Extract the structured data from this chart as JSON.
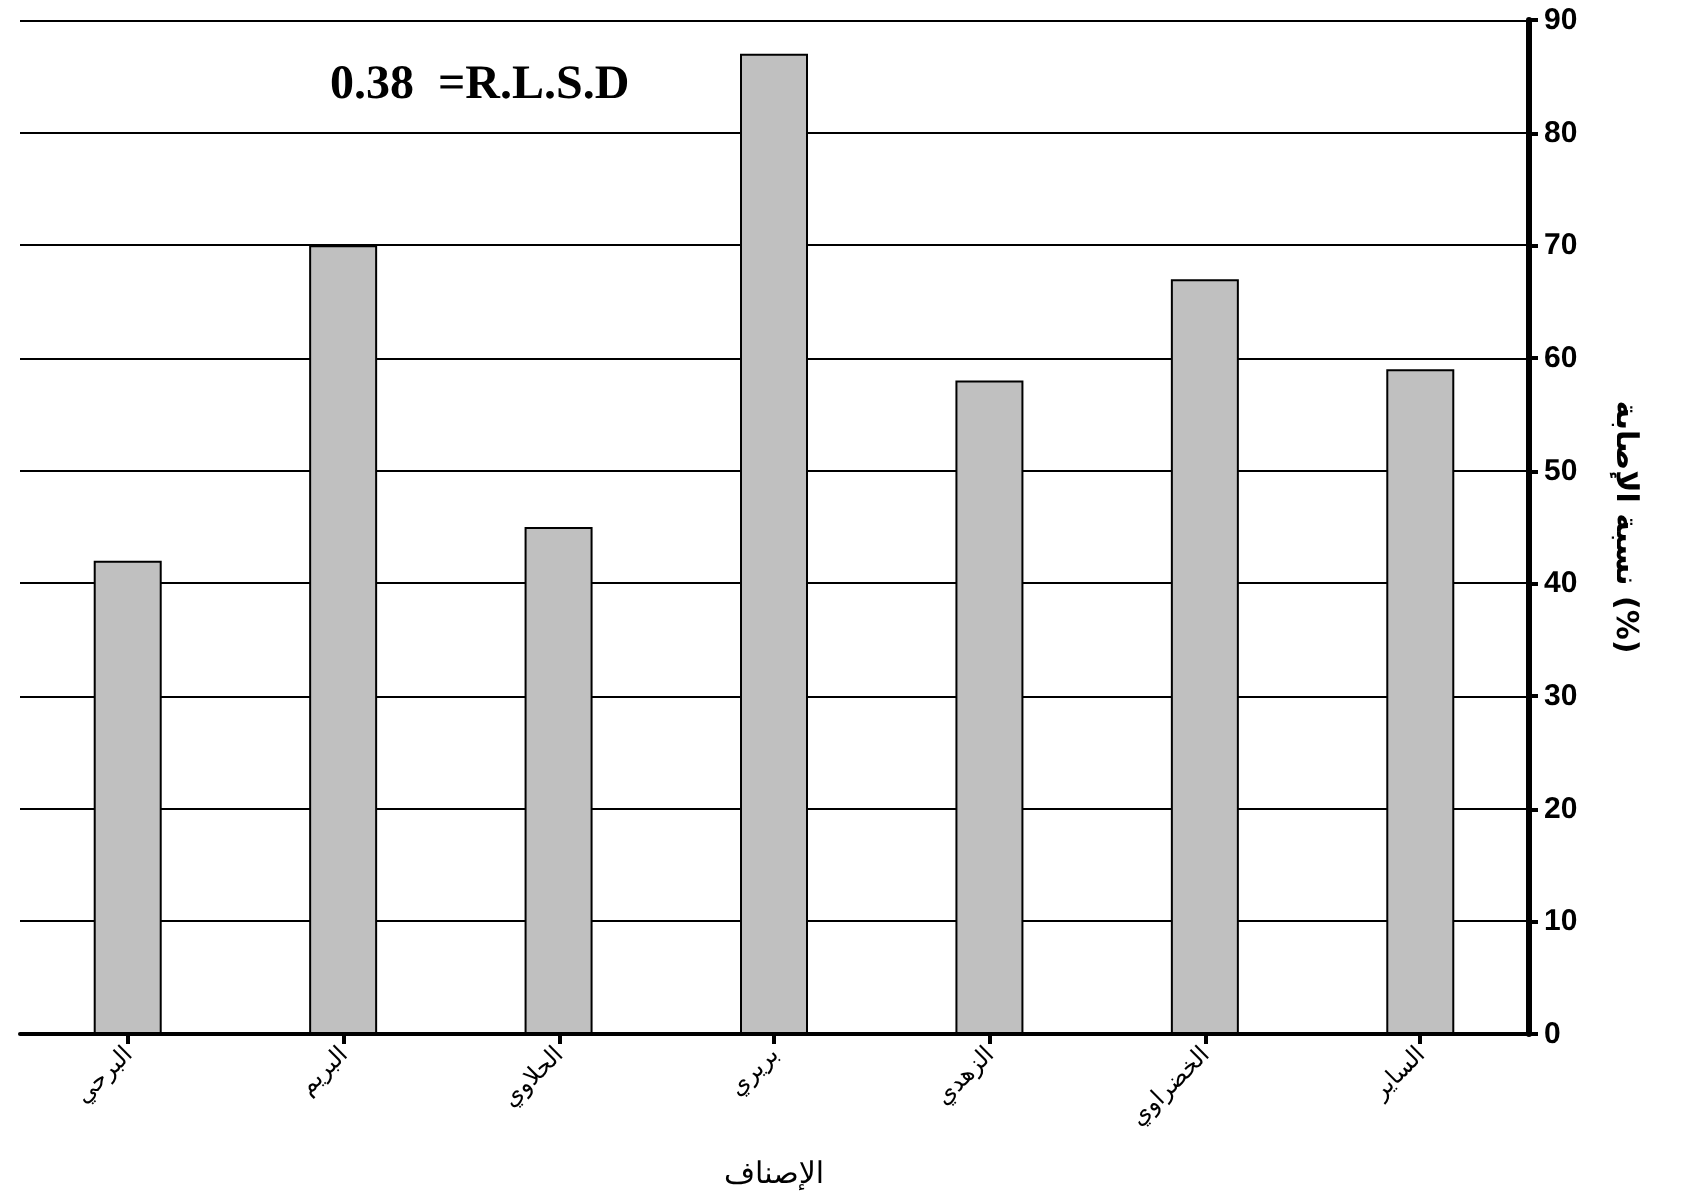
{
  "chart_data": {
    "type": "bar",
    "categories": [
      "البرحي",
      "البريم",
      "الحلاوي",
      "بريري",
      "الزهدي",
      "الخضراوي",
      "الساير"
    ],
    "values": [
      42,
      70,
      45,
      87,
      58,
      67,
      59
    ],
    "color": "#c0c0c0",
    "xlabel": "الإصناف",
    "ylabel": "نسبة الإصابة (%)",
    "ylim": [
      0,
      90
    ],
    "yticks": [
      0,
      10,
      20,
      30,
      40,
      50,
      60,
      70,
      80,
      90
    ],
    "grid": "y",
    "annotations": [
      "0.38  =R.L.S.D"
    ]
  }
}
